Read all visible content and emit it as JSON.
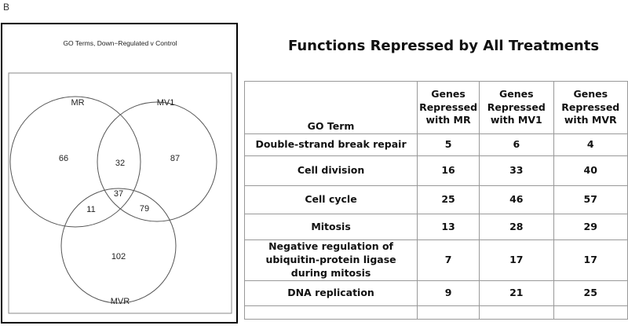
{
  "panel_label": "B",
  "venn": {
    "title": "GO Terms, Down−Regulated v Control",
    "sets": [
      "MR",
      "MV1",
      "MVR"
    ],
    "regions": {
      "MR_only": 66,
      "MR_MV1": 32,
      "MV1_only": 87,
      "all": 37,
      "MR_MVR": 11,
      "MV1_MVR": 79,
      "MVR_only": 102
    }
  },
  "table": {
    "title": "Functions Repressed by All Treatments",
    "header": [
      "GO Term",
      "Genes Repressed with MR",
      "Genes Repressed with MV1",
      "Genes Repressed with MVR"
    ],
    "rows": [
      [
        "Double-strand break repair",
        5,
        6,
        4
      ],
      [
        "Cell division",
        16,
        33,
        40
      ],
      [
        "Cell cycle",
        25,
        46,
        57
      ],
      [
        "Mitosis",
        13,
        28,
        29
      ],
      [
        "Negative regulation of ubiquitin-protein ligase during mitosis",
        7,
        17,
        17
      ],
      [
        "DNA replication",
        9,
        21,
        25
      ]
    ]
  }
}
